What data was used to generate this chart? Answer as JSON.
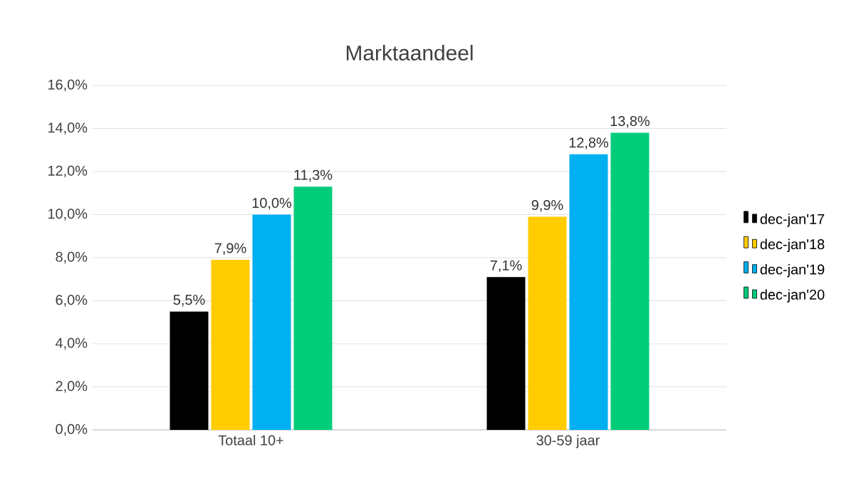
{
  "chart_data": {
    "type": "bar",
    "title": "Marktaandeel",
    "categories": [
      "Totaal 10+",
      "30-59 jaar"
    ],
    "series": [
      {
        "name": "dec-jan'17",
        "color": "#000000",
        "values": [
          5.5,
          7.1
        ],
        "value_labels": [
          "5,5%",
          "7,1%"
        ]
      },
      {
        "name": "dec-jan'18",
        "color": "#ffcc00",
        "values": [
          7.9,
          9.9
        ],
        "value_labels": [
          "7,9%",
          "9,9%"
        ]
      },
      {
        "name": "dec-jan'19",
        "color": "#00b0f0",
        "values": [
          10.0,
          12.8
        ],
        "value_labels": [
          "10,0%",
          "12,8%"
        ]
      },
      {
        "name": "dec-jan'20",
        "color": "#00cc7a",
        "values": [
          11.3,
          13.8
        ],
        "value_labels": [
          "11,3%",
          "13,8%"
        ]
      }
    ],
    "ylim": [
      0,
      16
    ],
    "yticks": [
      {
        "value": 0,
        "label": "0,0%"
      },
      {
        "value": 2,
        "label": "2,0%"
      },
      {
        "value": 4,
        "label": "4,0%"
      },
      {
        "value": 6,
        "label": "6,0%"
      },
      {
        "value": 8,
        "label": "8,0%"
      },
      {
        "value": 10,
        "label": "10,0%"
      },
      {
        "value": 12,
        "label": "12,0%"
      },
      {
        "value": 14,
        "label": "14,0%"
      },
      {
        "value": 16,
        "label": "16,0%"
      }
    ],
    "grid": "y",
    "legend": "right"
  }
}
